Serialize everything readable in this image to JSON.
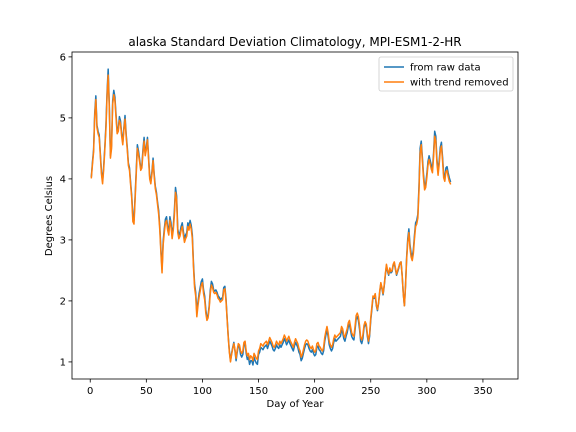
{
  "chart_data": {
    "type": "line",
    "title": "alaska Standard Deviation Climatology, MPI-ESM1-2-HR",
    "xlabel": "Day of Year",
    "ylabel": "Degrees Celsius",
    "xlim": [
      -16.25,
      381.25
    ],
    "ylim": [
      0.72,
      6.08
    ],
    "xticks": [
      0,
      50,
      100,
      150,
      200,
      250,
      300,
      350
    ],
    "yticks": [
      1,
      2,
      3,
      4,
      5,
      6
    ],
    "legend_position": "upper-right",
    "grid": false,
    "x_start": 1,
    "x_step": 1,
    "series": [
      {
        "name": "from raw data",
        "color": "#1f77b4",
        "values": [
          4.04,
          4.28,
          4.48,
          5.08,
          5.36,
          4.88,
          4.78,
          4.72,
          4.42,
          4.12,
          3.96,
          4.21,
          4.52,
          4.88,
          5.42,
          5.8,
          5.22,
          4.38,
          4.55,
          5.28,
          5.45,
          5.34,
          5.05,
          4.78,
          4.82,
          5.02,
          4.95,
          4.74,
          4.6,
          4.84,
          5.04,
          4.74,
          4.52,
          4.26,
          4.18,
          3.94,
          3.72,
          3.38,
          3.32,
          3.72,
          4.14,
          4.56,
          4.46,
          4.32,
          4.18,
          4.22,
          4.48,
          4.68,
          4.42,
          4.52,
          4.68,
          4.36,
          4.04,
          3.96,
          4.12,
          4.34,
          4.08,
          3.88,
          3.78,
          3.62,
          3.48,
          3.22,
          2.84,
          2.52,
          2.98,
          3.18,
          3.34,
          3.38,
          3.22,
          3.14,
          3.38,
          3.28,
          3.08,
          3.22,
          3.48,
          3.86,
          3.72,
          3.18,
          3.08,
          3.12,
          3.22,
          3.28,
          3.14,
          3.02,
          3.08,
          3.12,
          3.28,
          3.22,
          3.32,
          3.24,
          3.08,
          2.62,
          2.28,
          2.14,
          1.82,
          1.98,
          2.12,
          2.22,
          2.32,
          2.36,
          2.18,
          2.08,
          1.86,
          1.72,
          1.76,
          1.92,
          2.18,
          2.32,
          2.28,
          2.18,
          2.16,
          2.18,
          2.14,
          2.08,
          2.06,
          2.02,
          2.04,
          2.06,
          2.22,
          2.24,
          2.04,
          1.72,
          1.42,
          1.18,
          1.02,
          1.14,
          1.24,
          1.32,
          1.18,
          1.02,
          1.16,
          1.28,
          1.24,
          1.12,
          1.08,
          1.12,
          1.28,
          1.32,
          1.14,
          1.04,
          1.08,
          0.96,
          1.02,
          1.02,
          0.95,
          1.08,
          1.02,
          0.98,
          0.96,
          1.12,
          1.16,
          1.24,
          1.22,
          1.2,
          1.24,
          1.26,
          1.28,
          1.22,
          1.28,
          1.34,
          1.3,
          1.26,
          1.2,
          1.18,
          1.22,
          1.28,
          1.24,
          1.22,
          1.28,
          1.24,
          1.28,
          1.32,
          1.38,
          1.34,
          1.28,
          1.32,
          1.36,
          1.3,
          1.26,
          1.22,
          1.18,
          1.26,
          1.32,
          1.28,
          1.24,
          1.16,
          1.12,
          1.02,
          1.06,
          1.14,
          1.22,
          1.28,
          1.3,
          1.28,
          1.22,
          1.18,
          1.16,
          1.2,
          1.14,
          1.1,
          1.12,
          1.24,
          1.26,
          1.2,
          1.18,
          1.14,
          1.12,
          1.18,
          1.34,
          1.44,
          1.52,
          1.42,
          1.28,
          1.22,
          1.18,
          1.22,
          1.32,
          1.38,
          1.34,
          1.36,
          1.38,
          1.4,
          1.42,
          1.52,
          1.48,
          1.38,
          1.34,
          1.42,
          1.48,
          1.58,
          1.62,
          1.52,
          1.42,
          1.38,
          1.36,
          1.52,
          1.7,
          1.74,
          1.68,
          1.54,
          1.34,
          1.3,
          1.38,
          1.56,
          1.62,
          1.58,
          1.42,
          1.3,
          1.42,
          1.68,
          1.86,
          2.06,
          2.04,
          2.1,
          1.92,
          1.84,
          1.96,
          2.14,
          2.28,
          2.2,
          2.1,
          2.24,
          2.42,
          2.58,
          2.48,
          2.42,
          2.52,
          2.46,
          2.48,
          2.58,
          2.62,
          2.52,
          2.42,
          2.48,
          2.54,
          2.62,
          2.64,
          2.42,
          2.12,
          1.92,
          2.26,
          2.72,
          3.02,
          3.18,
          2.92,
          2.78,
          2.72,
          2.84,
          3.08,
          3.28,
          3.32,
          3.42,
          3.88,
          4.5,
          4.62,
          4.36,
          4.08,
          3.88,
          3.92,
          4.08,
          4.28,
          4.38,
          4.3,
          4.22,
          4.16,
          4.42,
          4.78,
          4.7,
          4.32,
          4.12,
          4.3,
          4.52,
          4.6,
          4.36,
          4.08,
          4.02,
          4.18,
          4.2,
          4.1,
          4.02,
          3.96
        ]
      },
      {
        "name": "with trend removed",
        "color": "#ff7f0e",
        "values": [
          4.02,
          4.24,
          4.44,
          5.02,
          5.3,
          4.84,
          4.74,
          4.68,
          4.38,
          4.08,
          3.92,
          4.16,
          4.48,
          4.82,
          5.36,
          5.7,
          5.16,
          4.34,
          4.5,
          5.22,
          5.38,
          5.28,
          5.0,
          4.74,
          4.78,
          4.96,
          4.9,
          4.7,
          4.56,
          4.8,
          4.98,
          4.7,
          4.48,
          4.22,
          4.14,
          3.9,
          3.68,
          3.3,
          3.26,
          3.66,
          4.08,
          4.5,
          4.4,
          4.28,
          4.14,
          4.18,
          4.42,
          4.62,
          4.38,
          4.48,
          4.64,
          4.32,
          4.0,
          3.92,
          4.08,
          4.3,
          4.04,
          3.84,
          3.74,
          3.58,
          3.42,
          3.16,
          2.78,
          2.46,
          2.92,
          3.12,
          3.28,
          3.32,
          3.16,
          3.08,
          3.32,
          3.22,
          3.02,
          3.16,
          3.4,
          3.78,
          3.66,
          3.12,
          3.02,
          3.06,
          3.16,
          3.22,
          3.08,
          2.96,
          3.02,
          3.06,
          3.22,
          3.16,
          3.26,
          3.18,
          3.02,
          2.56,
          2.22,
          2.08,
          1.74,
          1.92,
          2.06,
          2.16,
          2.26,
          2.3,
          2.12,
          2.02,
          1.8,
          1.68,
          1.72,
          1.88,
          2.12,
          2.26,
          2.22,
          2.14,
          2.12,
          2.14,
          2.1,
          2.04,
          2.02,
          1.98,
          2.0,
          2.02,
          2.18,
          2.2,
          2.0,
          1.7,
          1.4,
          1.16,
          1.0,
          1.12,
          1.22,
          1.3,
          1.2,
          1.06,
          1.2,
          1.3,
          1.28,
          1.18,
          1.14,
          1.18,
          1.32,
          1.34,
          1.18,
          1.1,
          1.14,
          1.04,
          1.1,
          1.08,
          1.02,
          1.14,
          1.1,
          1.06,
          1.04,
          1.18,
          1.22,
          1.3,
          1.28,
          1.26,
          1.3,
          1.32,
          1.34,
          1.28,
          1.34,
          1.4,
          1.36,
          1.32,
          1.26,
          1.24,
          1.28,
          1.34,
          1.3,
          1.28,
          1.34,
          1.3,
          1.34,
          1.38,
          1.44,
          1.4,
          1.34,
          1.38,
          1.42,
          1.36,
          1.32,
          1.28,
          1.24,
          1.32,
          1.38,
          1.34,
          1.3,
          1.22,
          1.18,
          1.08,
          1.12,
          1.2,
          1.28,
          1.34,
          1.36,
          1.34,
          1.28,
          1.24,
          1.22,
          1.26,
          1.2,
          1.16,
          1.18,
          1.3,
          1.32,
          1.26,
          1.24,
          1.2,
          1.18,
          1.24,
          1.4,
          1.5,
          1.58,
          1.48,
          1.34,
          1.28,
          1.24,
          1.28,
          1.38,
          1.44,
          1.4,
          1.42,
          1.44,
          1.46,
          1.48,
          1.58,
          1.54,
          1.44,
          1.4,
          1.48,
          1.54,
          1.64,
          1.68,
          1.58,
          1.48,
          1.44,
          1.42,
          1.58,
          1.76,
          1.8,
          1.74,
          1.6,
          1.4,
          1.36,
          1.44,
          1.6,
          1.66,
          1.62,
          1.46,
          1.34,
          1.46,
          1.72,
          1.9,
          2.08,
          2.06,
          2.12,
          1.94,
          1.86,
          1.98,
          2.16,
          2.3,
          2.22,
          2.12,
          2.26,
          2.44,
          2.6,
          2.5,
          2.44,
          2.54,
          2.48,
          2.5,
          2.6,
          2.64,
          2.54,
          2.44,
          2.5,
          2.56,
          2.62,
          2.64,
          2.42,
          2.12,
          1.92,
          2.24,
          2.68,
          2.96,
          3.12,
          2.86,
          2.72,
          2.66,
          2.78,
          3.02,
          3.22,
          3.26,
          3.36,
          3.8,
          4.42,
          4.56,
          4.3,
          4.02,
          3.82,
          3.86,
          4.02,
          4.22,
          4.32,
          4.24,
          4.16,
          4.1,
          4.36,
          4.7,
          4.62,
          4.26,
          4.06,
          4.24,
          4.46,
          4.54,
          4.3,
          4.02,
          3.96,
          4.12,
          4.14,
          4.04,
          3.96,
          3.92
        ]
      }
    ]
  }
}
